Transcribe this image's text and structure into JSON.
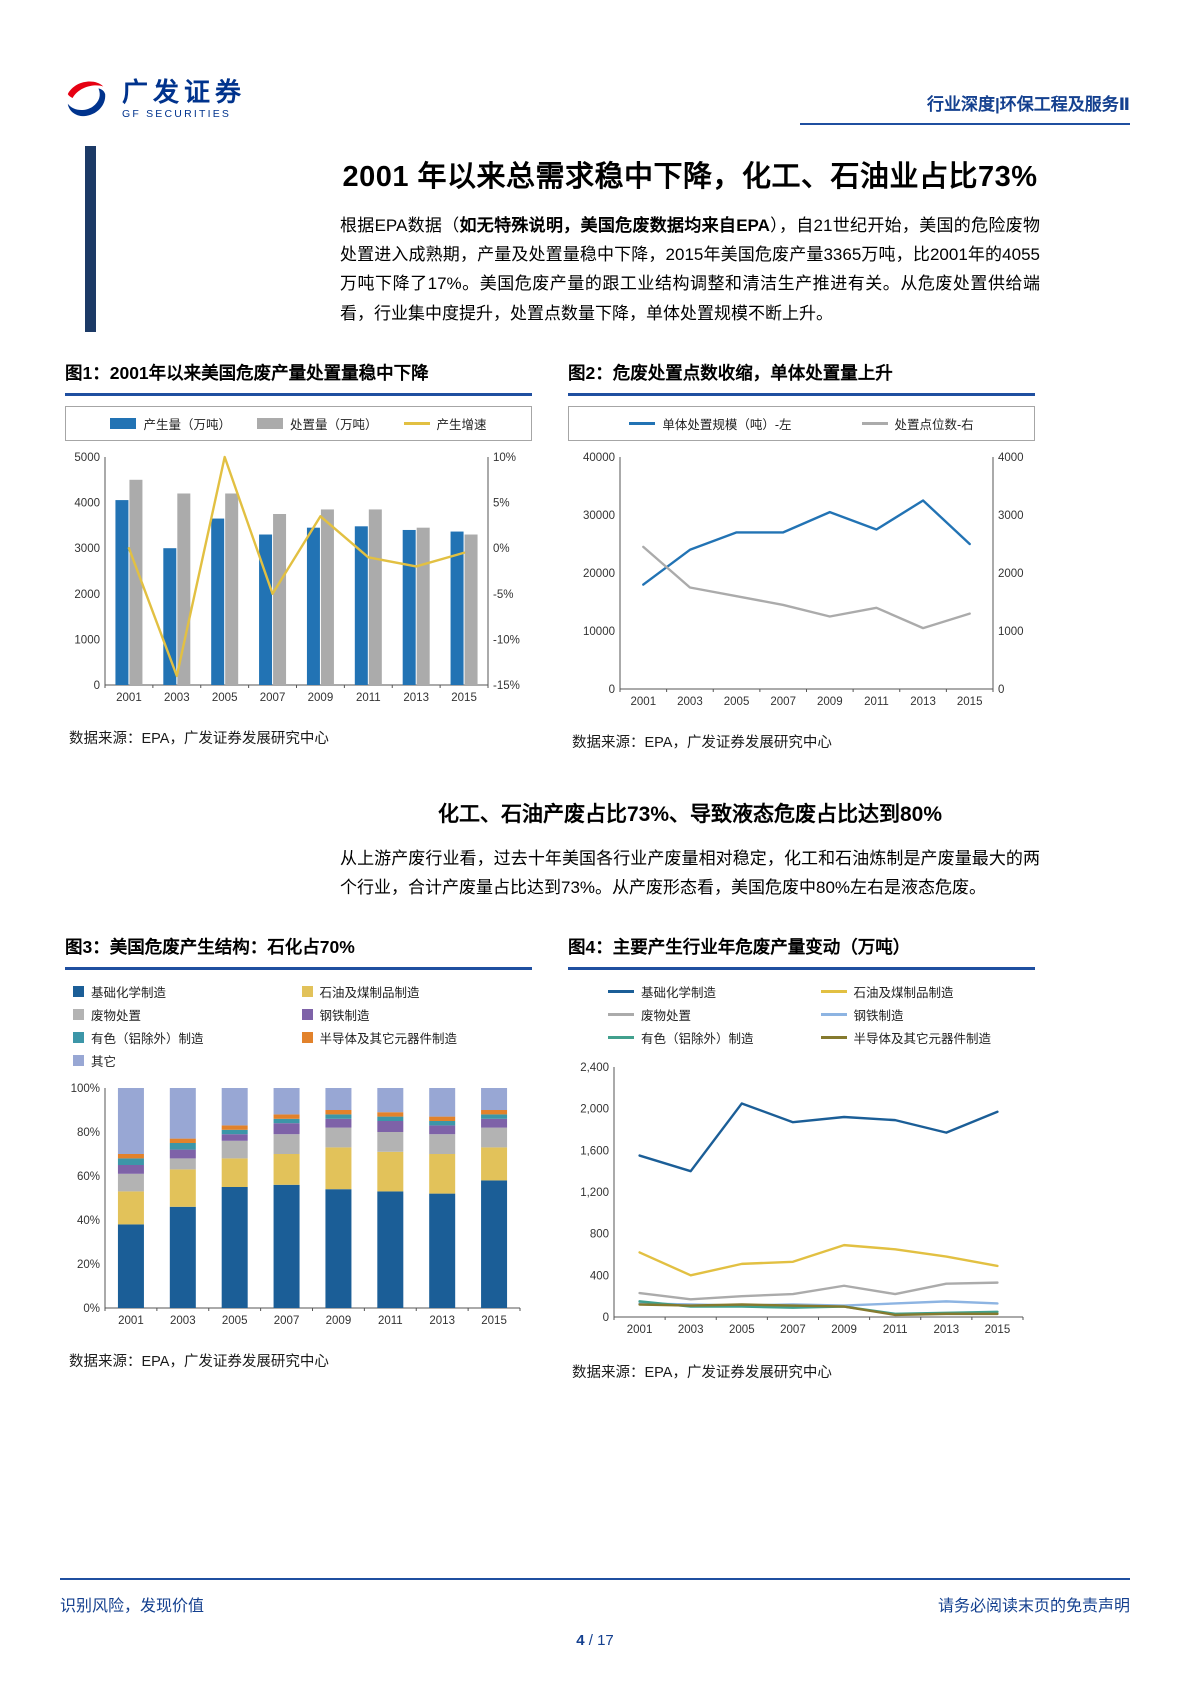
{
  "header": {
    "logo_cn": "广发证券",
    "logo_en": "GF SECURITIES",
    "right": "行业深度|环保工程及服务Ⅱ"
  },
  "title": "2001 年以来总需求稳中下降，化工、石油业占比73%",
  "para1": {
    "pre": "根据EPA数据（",
    "bold": "如无特殊说明，美国危废数据均来自EPA",
    "post": "），自21世纪开始，美国的危险废物处置进入成熟期，产量及处置量稳中下降，2015年美国危废产量3365万吨，比2001年的4055万吨下降了17%。美国危废产量的跟工业结构调整和清洁生产推进有关。从危废处置供给端看，行业集中度提升，处置点数量下降，单体处置规模不断上升。"
  },
  "section2": {
    "title": "化工、石油产废占比73%、导致液态危废占比达到80%",
    "para": "从上游产废行业看，过去十年美国各行业产废量相对稳定，化工和石油炼制是产废量最大的两个行业，合计产废量占比达到73%。从产废形态看，美国危废中80%左右是液态危废。"
  },
  "accent_blue": "#1F4FA0",
  "chart_data": [
    {
      "id": "fig1",
      "type": "bar+line",
      "title": "图1：2001年以来美国危废产量处置量稳中下降",
      "source": "数据来源：EPA，广发证券发展研究中心",
      "categories": [
        "2001",
        "2003",
        "2005",
        "2007",
        "2009",
        "2011",
        "2013",
        "2015"
      ],
      "bar_series": [
        {
          "name": "产生量（万吨）",
          "color": "#2273B4",
          "values": [
            4055,
            3000,
            3650,
            3300,
            3450,
            3480,
            3400,
            3365
          ]
        },
        {
          "name": "处置量（万吨）",
          "color": "#ABABAB",
          "values": [
            4500,
            4200,
            4200,
            3750,
            3850,
            3850,
            3450,
            3300
          ]
        }
      ],
      "line_series": [
        {
          "name": "产生增速",
          "color": "#E2C042",
          "axis": "right",
          "values": [
            0,
            -14,
            10,
            -5,
            3.5,
            -1,
            -2,
            -0.5
          ]
        }
      ],
      "left_axis": {
        "min": 0,
        "max": 5000,
        "step": 1000
      },
      "right_axis": {
        "min": -15,
        "max": 10,
        "step": 5,
        "suffix": "%"
      },
      "grid": false,
      "legend_position": "top"
    },
    {
      "id": "fig2",
      "type": "line",
      "title": "图2：危废处置点数收缩，单体处置量上升",
      "source": "数据来源：EPA，广发证券发展研究中心",
      "categories": [
        "2001",
        "2003",
        "2005",
        "2007",
        "2009",
        "2011",
        "2013",
        "2015"
      ],
      "line_series": [
        {
          "name": "单体处置规模（吨）-左",
          "color": "#2273B4",
          "axis": "left",
          "values": [
            18000,
            24000,
            27000,
            27000,
            30500,
            27500,
            32500,
            25000
          ]
        },
        {
          "name": "处置点位数-右",
          "color": "#ABABAB",
          "axis": "right",
          "values": [
            2450,
            1750,
            1600,
            1450,
            1250,
            1400,
            1050,
            1300
          ]
        }
      ],
      "left_axis": {
        "min": 0,
        "max": 40000,
        "step": 10000
      },
      "right_axis": {
        "min": 0,
        "max": 4000,
        "step": 1000
      },
      "grid": false,
      "legend_position": "top"
    },
    {
      "id": "fig3",
      "type": "stacked100",
      "title": "图3：美国危废产生结构：石化占70%",
      "source": "数据来源：EPA，广发证券发展研究中心",
      "categories": [
        "2001",
        "2003",
        "2005",
        "2007",
        "2009",
        "2011",
        "2013",
        "2015"
      ],
      "series": [
        {
          "name": "基础化学制造",
          "color": "#1B5E97",
          "values": [
            38,
            46,
            55,
            56,
            54,
            53,
            52,
            58
          ]
        },
        {
          "name": "石油及煤制品制造",
          "color": "#E2C25A",
          "values": [
            15,
            17,
            13,
            14,
            19,
            18,
            18,
            15
          ]
        },
        {
          "name": "废物处置",
          "color": "#B3B3B3",
          "values": [
            8,
            5,
            8,
            9,
            9,
            9,
            9,
            9
          ]
        },
        {
          "name": "钢铁制造",
          "color": "#7E62A8",
          "values": [
            4,
            4,
            3,
            5,
            4,
            5,
            4,
            4
          ]
        },
        {
          "name": "有色（铝除外）制造",
          "color": "#3C96A8",
          "values": [
            3,
            3,
            2,
            2,
            2,
            2,
            2,
            2
          ]
        },
        {
          "name": "半导体及其它元器件制造",
          "color": "#E2822B",
          "values": [
            2,
            2,
            2,
            2,
            2,
            2,
            2,
            2
          ]
        },
        {
          "name": "其它",
          "color": "#98A7D4",
          "values": [
            30,
            23,
            17,
            12,
            10,
            11,
            13,
            10
          ]
        }
      ],
      "y_axis": {
        "min": 0,
        "max": 100,
        "step": 20,
        "suffix": "%"
      },
      "legend_columns": [
        [
          0,
          2,
          4,
          6
        ],
        [
          1,
          3,
          5
        ]
      ],
      "grid": false,
      "legend_position": "top"
    },
    {
      "id": "fig4",
      "type": "line",
      "title": "图4：主要产生行业年危废产量变动（万吨）",
      "source": "数据来源：EPA，广发证券发展研究中心",
      "categories": [
        "2001",
        "2003",
        "2005",
        "2007",
        "2009",
        "2011",
        "2013",
        "2015"
      ],
      "line_series": [
        {
          "name": "基础化学制造",
          "color": "#1B5E97",
          "values": [
            1550,
            1400,
            2050,
            1870,
            1920,
            1890,
            1770,
            1970
          ]
        },
        {
          "name": "石油及煤制品制造",
          "color": "#E2C042",
          "values": [
            620,
            400,
            510,
            530,
            690,
            650,
            580,
            490
          ]
        },
        {
          "name": "废物处置",
          "color": "#ABABAB",
          "values": [
            230,
            170,
            200,
            220,
            300,
            220,
            320,
            330
          ]
        },
        {
          "name": "钢铁制造",
          "color": "#8DB4E2",
          "values": [
            130,
            120,
            110,
            120,
            110,
            130,
            150,
            130
          ]
        },
        {
          "name": "有色（铝除外）制造",
          "color": "#41A08D",
          "values": [
            150,
            100,
            100,
            90,
            100,
            30,
            40,
            50
          ]
        },
        {
          "name": "半导体及其它元器件制造",
          "color": "#857A2E",
          "values": [
            120,
            110,
            120,
            110,
            100,
            20,
            30,
            30
          ]
        }
      ],
      "left_axis": {
        "min": 0,
        "max": 2400,
        "step": 400,
        "format": "comma"
      },
      "legend_columns": [
        [
          0,
          2,
          4
        ],
        [
          1,
          3,
          5
        ]
      ],
      "grid": false,
      "legend_position": "top"
    }
  ],
  "footer": {
    "left": "识别风险，发现价值",
    "right": "请务必阅读末页的免责声明",
    "page_current": "4",
    "page_sep": " / ",
    "page_total": "17"
  }
}
